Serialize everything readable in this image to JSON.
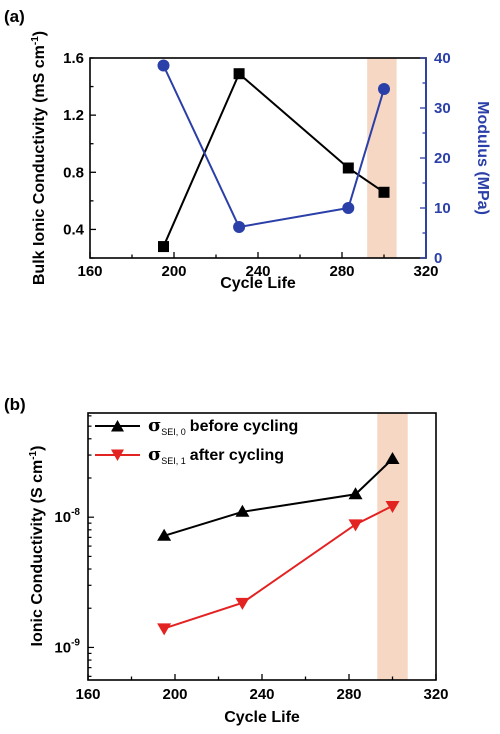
{
  "colors": {
    "black": "#000000",
    "blue": "#2b3fa8",
    "red": "#e32222",
    "highlight": "#f5d7c3"
  },
  "chart_data": [
    {
      "panel_label": "(a)",
      "type": "line",
      "xlabel": "Cycle Life",
      "ylabel": "Bulk Ionic Conductivity (mS cm",
      "ylabel_sup": "-1",
      "ylabel_end": ")",
      "y2label": "Modulus (MPa)",
      "xlim": [
        160,
        320
      ],
      "ylim": [
        0.2,
        1.6
      ],
      "y2lim": [
        0,
        40
      ],
      "x_ticks": [
        "160",
        "200",
        "240",
        "280",
        "320"
      ],
      "y_ticks": [
        "0.4",
        "0.8",
        "1.2",
        "1.6"
      ],
      "y2_ticks": [
        "0",
        "10",
        "20",
        "30",
        "40"
      ],
      "highlight_x": [
        292,
        306
      ],
      "series": [
        {
          "axis": "left",
          "marker": "square",
          "x": [
            195,
            231,
            283,
            300
          ],
          "values": [
            0.28,
            1.49,
            0.83,
            0.66
          ]
        },
        {
          "axis": "right",
          "marker": "circle",
          "x": [
            195,
            231,
            283,
            300
          ],
          "values": [
            38.5,
            6.2,
            10.0,
            33.8
          ]
        }
      ]
    },
    {
      "panel_label": "(b)",
      "type": "line",
      "xlabel": "Cycle Life",
      "ylabel": "Ionic Conductivity (S cm",
      "ylabel_sup": "-1",
      "ylabel_end": ")",
      "yscale": "log",
      "xlim": [
        160,
        320
      ],
      "ylim_log10": [
        -9.25,
        -7.2
      ],
      "x_ticks": [
        "160",
        "200",
        "240",
        "280",
        "320"
      ],
      "y_ticks": [
        {
          "base": "10",
          "exp": "-9",
          "value": 1e-09
        },
        {
          "base": "10",
          "exp": "-8",
          "value": 1e-08
        }
      ],
      "highlight_x": [
        293,
        307
      ],
      "series": [
        {
          "symbol": "σ",
          "sub": "SEI, 0",
          "name": "before cycling",
          "marker": "triangle-up",
          "x": [
            195,
            231,
            283,
            300
          ],
          "values": [
            7.2e-09,
            1.1e-08,
            1.5e-08,
            2.8e-08
          ]
        },
        {
          "symbol": "σ",
          "sub": "SEI, 1",
          "name": "after cycling",
          "marker": "triangle-down",
          "x": [
            195,
            231,
            283,
            300
          ],
          "values": [
            1.4e-09,
            2.2e-09,
            8.8e-09,
            1.22e-08
          ]
        }
      ]
    }
  ]
}
